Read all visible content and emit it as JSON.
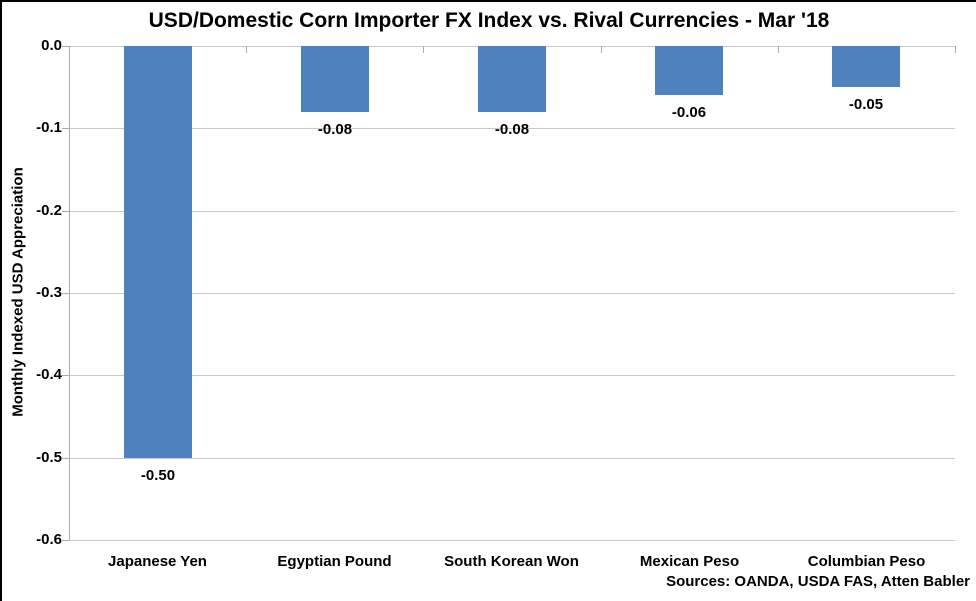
{
  "chart_data": {
    "type": "bar",
    "title": "USD/Domestic Corn Importer FX Index vs. Rival Currencies - Mar '18",
    "ylabel": "Monthly Indexed USD Appreciation",
    "xlabel": "",
    "categories": [
      "Japanese Yen",
      "Egyptian Pound",
      "South Korean Won",
      "Mexican Peso",
      "Columbian Peso"
    ],
    "values": [
      -0.5,
      -0.08,
      -0.08,
      -0.06,
      -0.05
    ],
    "data_labels": [
      "-0.50",
      "-0.08",
      "-0.08",
      "-0.06",
      "-0.05"
    ],
    "yticks": [
      0.0,
      -0.1,
      -0.2,
      -0.3,
      -0.4,
      -0.5,
      -0.6
    ],
    "ytick_labels": [
      "0.0",
      "-0.1",
      "-0.2",
      "-0.3",
      "-0.4",
      "-0.5",
      "-0.6"
    ],
    "ylim": [
      -0.6,
      0
    ],
    "grid": true,
    "legend": "none",
    "source_note": "Sources: OANDA, USDA FAS, Atten Babler",
    "colors": {
      "bar": "#4F81BD",
      "gridline": "#C9C9C9",
      "axis": "#ACACAC",
      "text": "#000000",
      "background": "#FFFFFF",
      "frame_border": "#000000"
    }
  }
}
